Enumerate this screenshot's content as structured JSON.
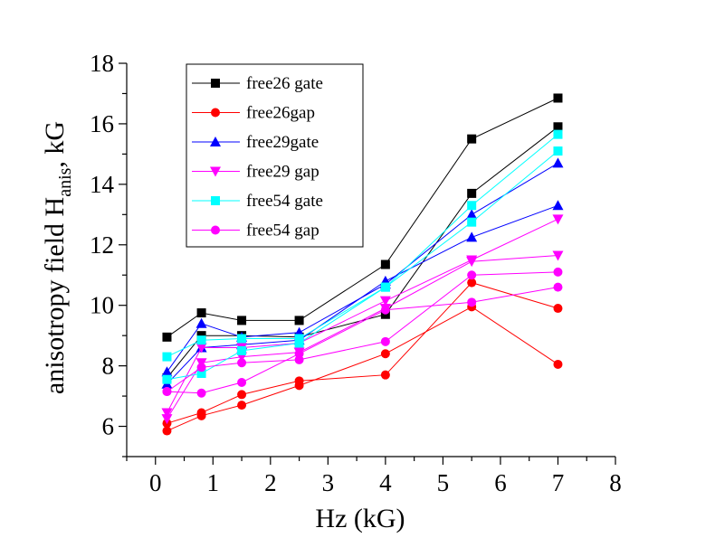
{
  "chart_data": {
    "type": "line",
    "xlabel": "Hz (kG)",
    "ylabel_main": "anisotropy field H",
    "ylabel_sub": "anis",
    "ylabel_tail": ", kG",
    "xlim": [
      -0.5,
      8
    ],
    "ylim": [
      5,
      18
    ],
    "x_ticks": [
      "0",
      "1",
      "2",
      "3",
      "4",
      "5",
      "6",
      "7",
      "8"
    ],
    "y_ticks": [
      "6",
      "8",
      "10",
      "12",
      "14",
      "16",
      "18"
    ],
    "legend_placement": "top-left",
    "series": [
      {
        "name": "free26 gate",
        "color": "#000000",
        "marker": "square",
        "lines": [
          {
            "x": [
              0.2,
              0.8,
              1.5,
              2.5,
              4,
              5.5,
              7
            ],
            "y": [
              8.95,
              9.75,
              9.5,
              9.5,
              11.35,
              15.5,
              16.85
            ]
          },
          {
            "x": [
              0.2,
              0.8,
              1.5,
              2.5,
              4,
              5.5,
              7
            ],
            "y": [
              7.6,
              9.0,
              9.0,
              8.95,
              9.7,
              13.7,
              15.9
            ]
          }
        ]
      },
      {
        "name": "free26gap",
        "color": "#ff0000",
        "marker": "circle",
        "lines": [
          {
            "x": [
              0.2,
              0.8,
              1.5,
              2.5,
              4,
              5.5,
              7
            ],
            "y": [
              6.1,
              6.45,
              7.05,
              7.5,
              7.7,
              10.75,
              9.9
            ]
          },
          {
            "x": [
              0.2,
              0.8,
              1.5,
              2.5,
              4,
              5.5,
              7
            ],
            "y": [
              5.85,
              6.35,
              6.7,
              7.35,
              8.4,
              9.95,
              8.05
            ]
          }
        ]
      },
      {
        "name": "free29gate",
        "color": "#0000ff",
        "marker": "triangle-up",
        "lines": [
          {
            "x": [
              0.2,
              0.8,
              1.5,
              2.5,
              4,
              5.5,
              7
            ],
            "y": [
              7.8,
              9.4,
              8.95,
              9.1,
              10.7,
              13.0,
              14.7
            ]
          },
          {
            "x": [
              0.2,
              0.8,
              1.5,
              2.5,
              4,
              5.5,
              7
            ],
            "y": [
              7.4,
              8.6,
              8.7,
              8.85,
              10.8,
              12.25,
              13.3
            ]
          }
        ]
      },
      {
        "name": "free29 gap",
        "color": "#ff00ff",
        "marker": "triangle-down",
        "lines": [
          {
            "x": [
              0.2,
              0.8,
              1.5,
              2.5,
              4,
              5.5,
              7
            ],
            "y": [
              6.45,
              8.6,
              8.6,
              8.75,
              10.15,
              11.5,
              12.85
            ]
          },
          {
            "x": [
              0.2,
              0.8,
              1.5,
              2.5,
              4,
              5.5,
              7
            ],
            "y": [
              6.25,
              8.1,
              8.3,
              8.45,
              9.9,
              11.45,
              11.65
            ]
          }
        ]
      },
      {
        "name": "free54 gate",
        "color": "#00ffff",
        "marker": "square",
        "lines": [
          {
            "x": [
              0.2,
              0.8,
              1.5,
              2.5,
              4,
              5.5,
              7
            ],
            "y": [
              8.3,
              8.85,
              8.9,
              8.9,
              10.6,
              13.3,
              15.65
            ]
          },
          {
            "x": [
              0.2,
              0.8,
              1.5,
              2.5,
              4,
              5.5,
              7
            ],
            "y": [
              7.55,
              7.75,
              8.5,
              8.75,
              10.6,
              12.75,
              15.1
            ]
          }
        ]
      },
      {
        "name": "free54 gap",
        "color": "#ff00ff",
        "marker": "circle",
        "lines": [
          {
            "x": [
              0.2,
              0.8,
              1.5,
              2.5,
              4,
              5.5,
              7
            ],
            "y": [
              7.15,
              7.95,
              8.1,
              8.2,
              8.8,
              11.0,
              11.1
            ]
          },
          {
            "x": [
              0.2,
              0.8,
              1.5,
              2.5,
              4,
              5.5,
              7
            ],
            "y": [
              7.15,
              7.1,
              7.45,
              8.4,
              9.85,
              10.1,
              10.6
            ]
          }
        ]
      }
    ]
  }
}
